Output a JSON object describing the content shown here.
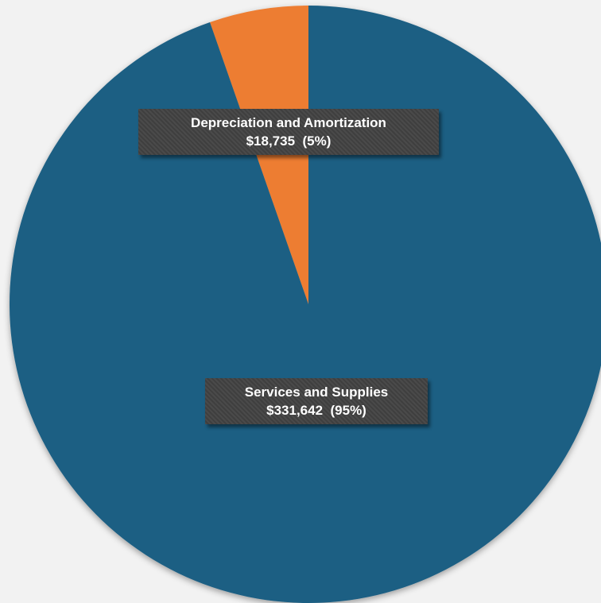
{
  "chart_data": {
    "type": "pie",
    "slices": [
      {
        "name": "Depreciation and Amortization",
        "value": 18735,
        "value_text": "$18,735",
        "percent_text": "(5%)",
        "color": "#ed7d31"
      },
      {
        "name": "Services and Supplies",
        "value": 331642,
        "value_text": "$331,642",
        "percent_text": "(95%)",
        "color": "#1b5e83"
      }
    ],
    "start_angle": "12 o'clock",
    "direction": "counter-clockwise from top",
    "legend": "none",
    "background_color": "#f2f2f2",
    "label_style": "dark callout box"
  }
}
